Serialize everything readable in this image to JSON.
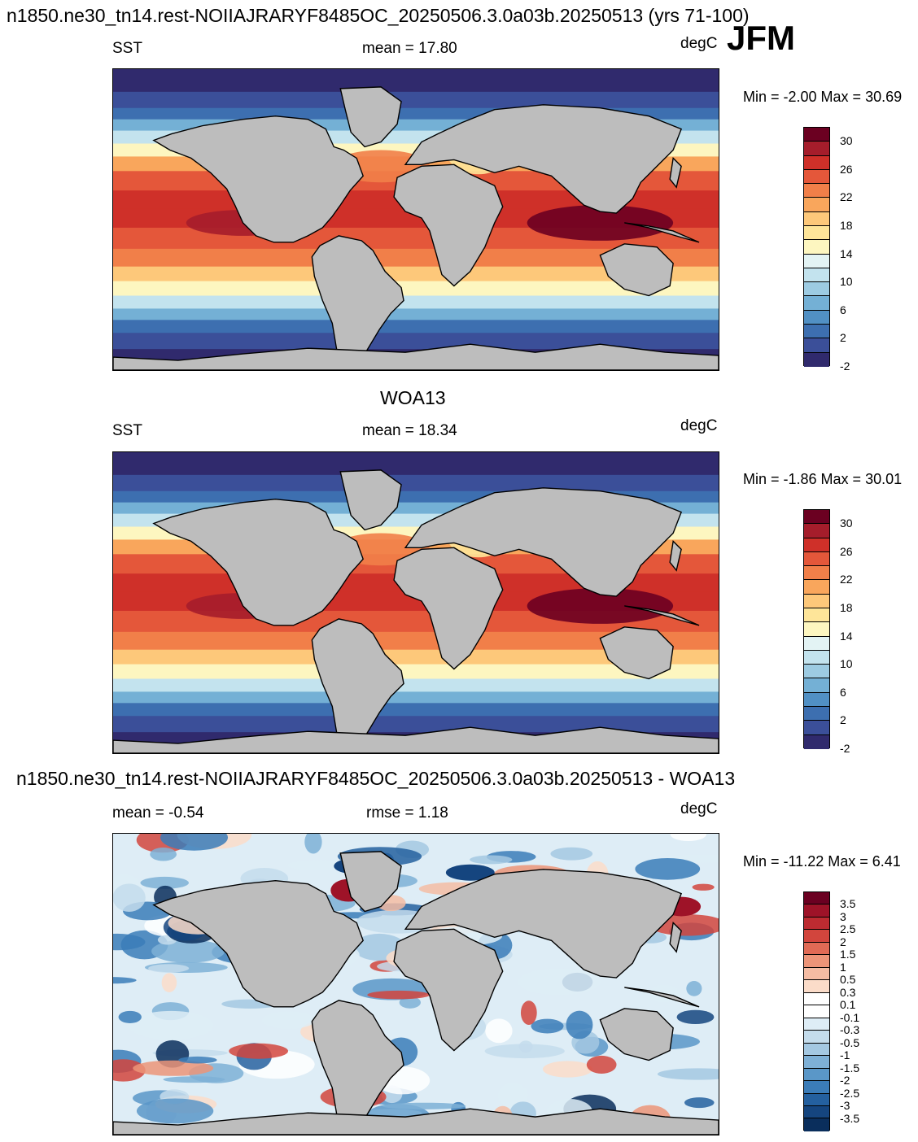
{
  "header": {
    "title": "n1850.ne30_tn14.rest-NOIIAJRARYF8485OC_20250506.3.0a03b.20250513 (yrs 71-100)",
    "season": "JFM"
  },
  "panels": [
    {
      "title": "",
      "left_label": "SST",
      "center_label": "mean =  17.80",
      "units": "degC",
      "minmax": "Min =  -2.00 Max =  30.69",
      "colorbar_ticks": [
        "30",
        "26",
        "22",
        "18",
        "14",
        "10",
        "6",
        "2",
        "-2"
      ]
    },
    {
      "title": "WOA13",
      "left_label": "SST",
      "center_label": "mean =  18.34",
      "units": "degC",
      "minmax": "Min =  -1.86 Max =  30.01",
      "colorbar_ticks": [
        "30",
        "26",
        "22",
        "18",
        "14",
        "10",
        "6",
        "2",
        "-2"
      ]
    },
    {
      "title": "n1850.ne30_tn14.rest-NOIIAJRARYF8485OC_20250506.3.0a03b.20250513 - WOA13",
      "left_label": "mean =  -0.54",
      "center_label": "rmse =   1.18",
      "units": "degC",
      "minmax": "Min = -11.22 Max =   6.41",
      "colorbar_ticks": [
        "3.5",
        "3",
        "2.5",
        "2",
        "1.5",
        "1",
        "0.5",
        "0.3",
        "0.1",
        "-0.1",
        "-0.3",
        "-0.5",
        "-1",
        "-1.5",
        "-2",
        "-2.5",
        "-3",
        "-3.5"
      ]
    }
  ],
  "colors": {
    "land": "#bdbdbd",
    "sst_scale": [
      "#6b0021",
      "#a51d2b",
      "#cf3029",
      "#e4573a",
      "#f17f49",
      "#f9a65c",
      "#fdc87a",
      "#fee599",
      "#fdf6c0",
      "#e3f3f4",
      "#c3e3ee",
      "#9dcbe2",
      "#74b0d5",
      "#5190c4",
      "#3d6fb0",
      "#3b4f99",
      "#302a6d"
    ],
    "diff_scale": [
      "#6b0021",
      "#9e1328",
      "#bd2b31",
      "#d2453d",
      "#e06a55",
      "#ec9478",
      "#f5bca3",
      "#fbdcc9",
      "#ffffff",
      "#ffffff",
      "#deedf6",
      "#c4dcec",
      "#a4c8e2",
      "#7eb0d6",
      "#5a97c8",
      "#3b7cb8",
      "#24609f",
      "#15457f",
      "#0a2e5c"
    ]
  }
}
